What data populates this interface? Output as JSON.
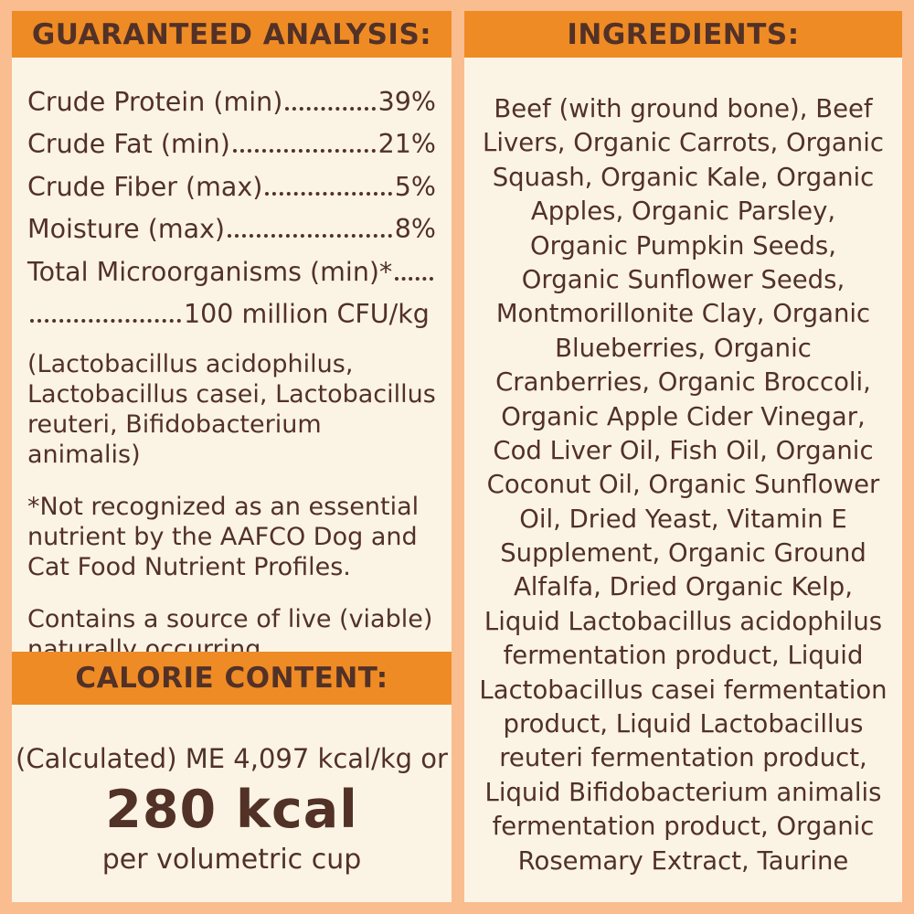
{
  "colors": {
    "background": "#F9BD90",
    "header_band": "#EF8B24",
    "panel": "#FBF4E5",
    "text": "#523127"
  },
  "guaranteed_analysis": {
    "title": "GUARANTEED ANALYSIS:",
    "rows": [
      {
        "label": "Crude Protein (min)",
        "value": "39%"
      },
      {
        "label": "Crude Fat (min)",
        "value": "21%"
      },
      {
        "label": "Crude Fiber (max)",
        "value": "5%"
      },
      {
        "label": "Moisture (max)",
        "value": "8%"
      }
    ],
    "microorganisms_row": {
      "label": "Total Microorganisms (min)*",
      "value": "100 million CFU/kg"
    },
    "species_note": "(Lactobacillus acidophilus, Lactobacillus casei, Lactobacillus reuteri, Bifidobacterium animalis)",
    "aafco_footnote": "*Not recognized as an essential nutrient by the AAFCO Dog and Cat Food Nutrient Profiles.",
    "live_note": "Contains a source of live (viable) naturally occurring microorganisms"
  },
  "calorie_content": {
    "title": "CALORIE CONTENT:",
    "calculated_line": "(Calculated) ME 4,097 kcal/kg or",
    "kcal_value": "280 kcal",
    "per_unit": "per volumetric cup"
  },
  "ingredients": {
    "title": "INGREDIENTS:",
    "text": "Beef (with ground bone), Beef Livers, Organic Carrots, Organic Squash, Organic Kale, Organic Apples, Organic Parsley, Organic Pumpkin Seeds, Organic Sunflower Seeds, Montmorillonite Clay, Organic Blueberries, Organic Cranberries, Organic Broccoli, Organic Apple Cider Vinegar, Cod Liver Oil, Fish Oil, Organic Coconut Oil, Organic Sunflower Oil, Dried Yeast, Vitamin E Supplement, Organic Ground Alfalfa, Dried Organic Kelp, Liquid Lactobacillus acidophilus fermentation product, Liquid Lactobacillus casei fermentation product, Liquid Lactobacillus reuteri fermentation product, Liquid Bifidobacterium animalis fermentation product, Organic Rosemary Extract, Taurine"
  }
}
